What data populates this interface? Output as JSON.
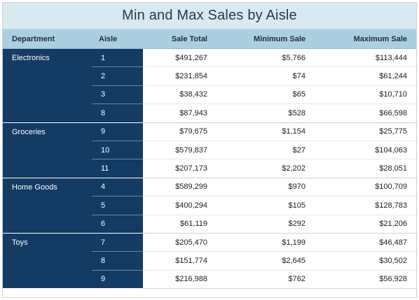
{
  "title": "Min and Max Sales by Aisle",
  "columns": [
    "Department",
    "Aisle",
    "Sale Total",
    "Minimum Sale",
    "Maximum Sale"
  ],
  "departments": [
    {
      "name": "Electronics",
      "rows": [
        {
          "aisle": "1",
          "total": "$491,267",
          "min": "$5,766",
          "max": "$113,444"
        },
        {
          "aisle": "2",
          "total": "$231,854",
          "min": "$74",
          "max": "$61,244"
        },
        {
          "aisle": "3",
          "total": "$38,432",
          "min": "$65",
          "max": "$10,710"
        },
        {
          "aisle": "8",
          "total": "$87,943",
          "min": "$528",
          "max": "$66,598"
        }
      ]
    },
    {
      "name": "Groceries",
      "rows": [
        {
          "aisle": "9",
          "total": "$79,675",
          "min": "$1,154",
          "max": "$25,775"
        },
        {
          "aisle": "10",
          "total": "$579,837",
          "min": "$27",
          "max": "$104,063"
        },
        {
          "aisle": "11",
          "total": "$207,173",
          "min": "$2,202",
          "max": "$28,051"
        }
      ]
    },
    {
      "name": "Home Goods",
      "rows": [
        {
          "aisle": "4",
          "total": "$589,299",
          "min": "$970",
          "max": "$100,709"
        },
        {
          "aisle": "5",
          "total": "$400,294",
          "min": "$105",
          "max": "$128,783"
        },
        {
          "aisle": "6",
          "total": "$61,119",
          "min": "$292",
          "max": "$21,206"
        }
      ]
    },
    {
      "name": "Toys",
      "rows": [
        {
          "aisle": "7",
          "total": "$205,470",
          "min": "$1,199",
          "max": "$46,487"
        },
        {
          "aisle": "8",
          "total": "$151,774",
          "min": "$2,645",
          "max": "$30,502"
        },
        {
          "aisle": "9",
          "total": "$216,988",
          "min": "$762",
          "max": "$56,928"
        }
      ]
    }
  ]
}
